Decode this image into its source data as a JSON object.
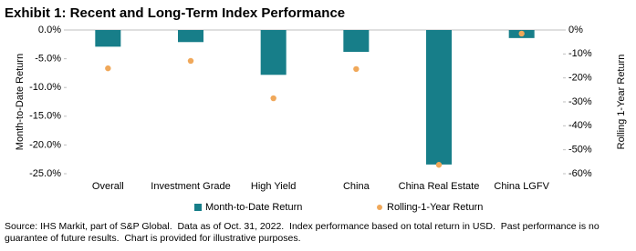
{
  "chart_data": {
    "type": "bar",
    "title": "Exhibit 1: Recent and Long-Term Index Performance",
    "categories": [
      "Overall",
      "Investment Grade",
      "High Yield",
      "China",
      "China Real Estate",
      "China LGFV"
    ],
    "series": [
      {
        "name": "Month-to-Date Return",
        "type": "bar",
        "axis": "y",
        "color": "#177e89",
        "values": [
          -2.9,
          -2.1,
          -7.8,
          -3.8,
          -23.4,
          -1.4
        ]
      },
      {
        "name": "Rolling-1-Year Return",
        "type": "scatter",
        "axis": "y2",
        "color": "#f0a85a",
        "values": [
          -16,
          -12.9,
          -28.5,
          -16.3,
          -56.3,
          -1.5
        ]
      }
    ],
    "ylabel": "Month-to-Date Return",
    "y2label": "Rolling 1-Year Return",
    "ylim": [
      0,
      -25
    ],
    "yticks": [
      {
        "value": 0,
        "label": "0.0%"
      },
      {
        "value": -5,
        "label": "-5.0%"
      },
      {
        "value": -10,
        "label": "-10.0%"
      },
      {
        "value": -15,
        "label": "-15.0%"
      },
      {
        "value": -20,
        "label": "-20.0%"
      },
      {
        "value": -25,
        "label": "-25.0%"
      }
    ],
    "y2lim": [
      0,
      -60
    ],
    "y2ticks": [
      {
        "value": 0,
        "label": "0%"
      },
      {
        "value": -10,
        "label": "-10%"
      },
      {
        "value": -20,
        "label": "-20%"
      },
      {
        "value": -30,
        "label": "-30%"
      },
      {
        "value": -40,
        "label": "-40%"
      },
      {
        "value": -50,
        "label": "-50%"
      },
      {
        "value": -60,
        "label": "-60%"
      }
    ],
    "grid": false,
    "legend": "bottom",
    "source": "Source: IHS Markit, part of S&P Global.  Data as of Oct. 31, 2022.  Index performance based on total return in USD.  Past performance is no guarantee of future results.  Chart is provided for illustrative purposes."
  }
}
